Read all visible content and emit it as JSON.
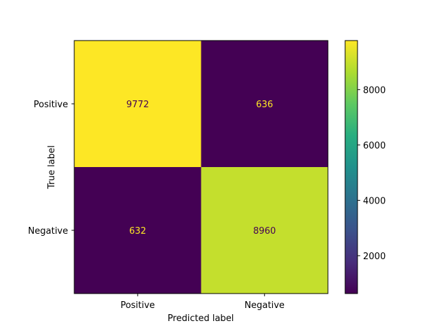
{
  "chart_data": {
    "type": "heatmap",
    "title": "",
    "xlabel": "Predicted label",
    "ylabel": "True label",
    "x_categories": [
      "Positive",
      "Negative"
    ],
    "y_categories": [
      "Positive",
      "Negative"
    ],
    "values": [
      [
        9772,
        636
      ],
      [
        632,
        8960
      ]
    ],
    "colormap": "viridis",
    "colorbar": {
      "min": 632,
      "max": 9772,
      "ticks": [
        2000,
        4000,
        6000,
        8000
      ]
    },
    "cell_text_colors": {
      "on_dark": "#fde725",
      "on_light": "#440154"
    },
    "grid": false,
    "legend": "colorbar-right"
  }
}
